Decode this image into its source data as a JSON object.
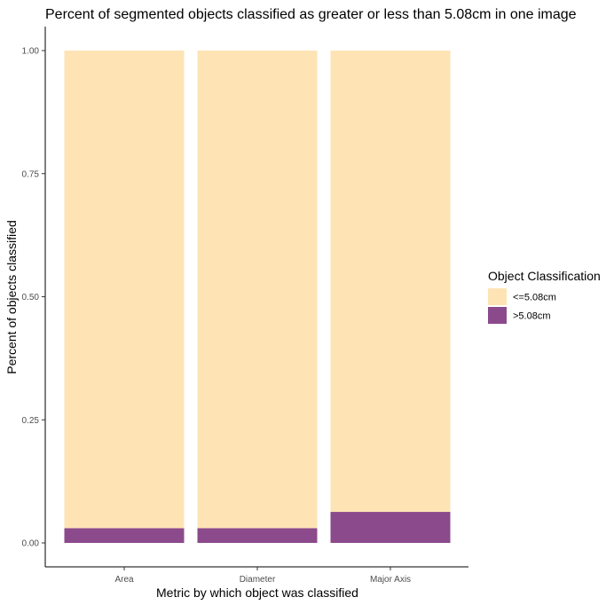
{
  "chart_data": {
    "type": "bar",
    "stacked": true,
    "title": "Percent of segmented objects classified as greater or less than 5.08cm in one image",
    "xlabel": "Metric by which object was classified",
    "ylabel": "Percent of objects classified",
    "categories": [
      "Area",
      "Diameter",
      "Major Axis"
    ],
    "yticks": [
      "0.00",
      "0.25",
      "0.50",
      "0.75",
      "1.00"
    ],
    "ylim": [
      0,
      1
    ],
    "series": [
      {
        "name": ">5.08cm",
        "values": [
          0.03,
          0.03,
          0.063
        ],
        "color": "#8b4a8b"
      },
      {
        "name": "<=5.08cm",
        "values": [
          0.97,
          0.97,
          0.937
        ],
        "color": "#fee4b4"
      }
    ],
    "legend": {
      "title": "Object Classification",
      "position": "right",
      "items": [
        {
          "label": "<=5.08cm",
          "color": "#fee4b4"
        },
        {
          "label": ">5.08cm",
          "color": "#8b4a8b"
        }
      ]
    },
    "grid": false
  }
}
